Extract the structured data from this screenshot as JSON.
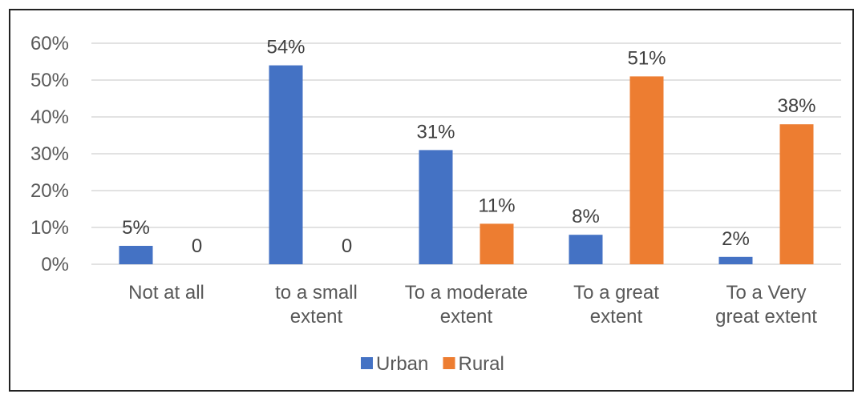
{
  "chart_data": {
    "type": "bar",
    "categories": [
      [
        "Not at all"
      ],
      [
        "to a small",
        "extent"
      ],
      [
        "To a moderate",
        "extent"
      ],
      [
        "To a great",
        "extent"
      ],
      [
        "To a Very",
        "great extent"
      ]
    ],
    "series": [
      {
        "name": "Urban",
        "color": "#4472C4",
        "values": [
          0.05,
          0.54,
          0.31,
          0.08,
          0.02
        ],
        "labels": [
          "5%",
          "54%",
          "31%",
          "8%",
          "2%"
        ]
      },
      {
        "name": "Rural",
        "color": "#ED7D31",
        "values": [
          0,
          0,
          0.11,
          0.51,
          0.38
        ],
        "labels": [
          "0",
          "0",
          "11%",
          "51%",
          "38%"
        ]
      }
    ],
    "y_ticks": [
      "0%",
      "10%",
      "20%",
      "30%",
      "40%",
      "50%",
      "60%"
    ],
    "ylim": [
      0,
      0.6
    ],
    "grid": true,
    "gridline_color": "#D9D9D9",
    "legend_position": "bottom"
  }
}
